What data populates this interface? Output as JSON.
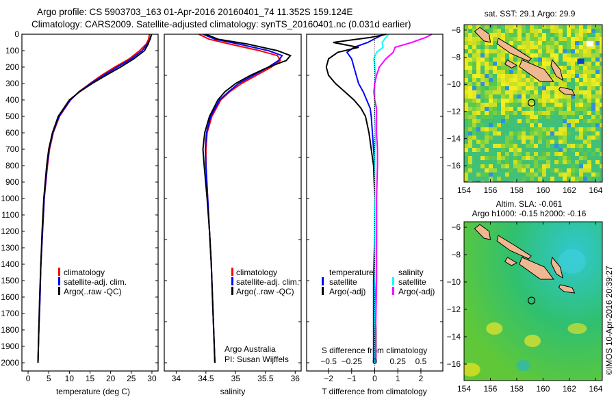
{
  "title_line1": "Argo profile: CS 5903703_163 01-Apr-2016 20160401_74 11.352S 159.124E",
  "title_line2": "Climatology: CARS2009. Satellite-adjusted climatology: synTS_20160401.nc (0.031d earlier)",
  "credit": "©IMOS 10-Apr-2016 20:39:27",
  "colors": {
    "climatology": "#ff0000",
    "satellite": "#0000ff",
    "argo": "#000000",
    "sal_satellite": "#00ffff",
    "sal_argo": "#ff00ff"
  },
  "chart_data": [
    {
      "type": "line",
      "id": "temperature",
      "xlabel": "temperature (deg C)",
      "ylabel": "depth",
      "xlim": [
        -1.5,
        31.5
      ],
      "ylim": [
        0,
        2080
      ],
      "xticks": [
        0,
        5,
        10,
        15,
        20,
        25,
        30
      ],
      "yticks": [
        0,
        100,
        200,
        300,
        400,
        500,
        600,
        700,
        800,
        900,
        1000,
        1100,
        1200,
        1300,
        1400,
        1500,
        1600,
        1700,
        1800,
        1900,
        2000
      ],
      "depth": [
        0,
        30,
        60,
        100,
        150,
        200,
        250,
        300,
        350,
        400,
        500,
        600,
        700,
        800,
        1000,
        1200,
        1400,
        1600,
        1800,
        2000
      ],
      "legend": [
        "climatology",
        "satellite-adj. clim.",
        "Argo(..raw -QC)"
      ],
      "series": [
        {
          "name": "climatology",
          "values": [
            29.4,
            29.2,
            28.6,
            27.0,
            24.5,
            21.0,
            17.8,
            15.0,
            12.3,
            10.3,
            7.6,
            6.1,
            5.2,
            4.7,
            3.9,
            3.5,
            3.1,
            2.9,
            2.6,
            2.4
          ]
        },
        {
          "name": "satellite-adj. clim.",
          "values": [
            29.9,
            29.6,
            28.9,
            27.6,
            25.0,
            21.6,
            18.3,
            15.2,
            12.4,
            10.2,
            7.5,
            6.0,
            5.1,
            4.6,
            3.9,
            3.5,
            3.1,
            2.9,
            2.6,
            2.4
          ]
        },
        {
          "name": "Argo(..raw -QC)",
          "values": [
            29.9,
            29.5,
            29.1,
            28.2,
            25.6,
            22.4,
            18.9,
            15.5,
            12.5,
            10.0,
            7.3,
            5.9,
            5.0,
            4.5,
            3.8,
            3.4,
            3.1,
            2.8,
            2.6,
            2.4
          ]
        }
      ]
    },
    {
      "type": "line",
      "id": "salinity",
      "xlabel": "salinity",
      "xlim": [
        33.8,
        36.1
      ],
      "ylim": [
        0,
        2080
      ],
      "xticks": [
        34,
        34.5,
        35,
        35.5,
        36
      ],
      "depth": [
        0,
        30,
        60,
        100,
        130,
        160,
        200,
        250,
        300,
        350,
        400,
        500,
        600,
        700,
        800,
        1000,
        1200,
        1400,
        1600,
        1800,
        2000
      ],
      "legend": [
        "climatology",
        "satellite-adj. clim.",
        "Argo(..raw -QC)"
      ],
      "annotation": [
        "Argo Australia",
        "PI: Susan Wijffels"
      ],
      "series": [
        {
          "name": "climatology",
          "values": [
            34.38,
            34.55,
            34.9,
            35.4,
            35.7,
            35.75,
            35.6,
            35.35,
            35.1,
            34.9,
            34.75,
            34.6,
            34.52,
            34.5,
            34.5,
            34.53,
            34.56,
            34.59,
            34.61,
            34.63,
            34.65
          ]
        },
        {
          "name": "satellite-adj. clim.",
          "values": [
            34.45,
            34.65,
            35.05,
            35.55,
            35.78,
            35.72,
            35.55,
            35.3,
            35.05,
            34.88,
            34.73,
            34.58,
            34.51,
            34.49,
            34.5,
            34.53,
            34.56,
            34.59,
            34.61,
            34.63,
            34.65
          ]
        },
        {
          "name": "Argo(..raw -QC)",
          "values": [
            34.5,
            34.7,
            35.2,
            35.7,
            35.92,
            35.85,
            35.55,
            35.25,
            35.0,
            34.82,
            34.7,
            34.56,
            34.48,
            34.45,
            34.47,
            34.52,
            34.56,
            34.59,
            34.61,
            34.63,
            34.65
          ]
        }
      ]
    },
    {
      "type": "line",
      "id": "difference",
      "xlabel": "T difference from climatology",
      "x2label": "S difference from climatology",
      "xlim": [
        -2.95,
        2.95
      ],
      "x2lim": [
        -0.7375,
        0.7375
      ],
      "ylim": [
        0,
        2080
      ],
      "xticks": [
        -2,
        -1,
        0,
        1,
        2
      ],
      "x2ticks": [
        "-0.5",
        "-0.25",
        "0",
        "0.25",
        "0.5"
      ],
      "legend_headers": [
        "temperature",
        "salinity"
      ],
      "legend": [
        "satellite",
        "Argo(-adj)",
        "satellite",
        "Argo(-adj)"
      ],
      "depth": [
        0,
        20,
        50,
        80,
        110,
        150,
        200,
        250,
        300,
        350,
        400,
        450,
        500,
        600,
        700,
        800,
        1000,
        1200,
        1500,
        1800,
        2000
      ],
      "series": [
        {
          "name": "T satellite",
          "axis": "T",
          "values": [
            0.4,
            0.1,
            -0.3,
            -0.9,
            -1.2,
            -1.0,
            -0.9,
            -0.8,
            -0.7,
            -0.5,
            -0.35,
            -0.2,
            -0.15,
            -0.1,
            -0.05,
            0,
            0,
            0,
            -0.05,
            -0.05,
            -0.05
          ]
        },
        {
          "name": "T Argo(-adj)",
          "axis": "T",
          "values": [
            0.5,
            -0.2,
            -1.8,
            -0.7,
            -1.6,
            -2.0,
            -2.1,
            -2.0,
            -1.7,
            -1.3,
            -0.9,
            -0.6,
            -0.4,
            -0.25,
            -0.15,
            -0.05,
            0,
            0,
            0,
            0.05,
            0.05
          ]
        },
        {
          "name": "S satellite",
          "axis": "S",
          "values": [
            0.15,
            0.12,
            0.08,
            0.09,
            0.02,
            -0.01,
            0.0,
            0.01,
            0.0,
            0.0,
            0.0,
            0.0,
            0.0,
            0.01,
            0.0,
            0.0,
            0.0,
            0.0,
            0.0,
            0.0,
            0.0
          ]
        },
        {
          "name": "S Argo(-adj)",
          "axis": "S",
          "values": [
            0.62,
            0.55,
            0.4,
            0.22,
            0.2,
            0.12,
            0.05,
            0.02,
            0.0,
            -0.01,
            0.0,
            0.02,
            0.02,
            0.02,
            0.03,
            0.03,
            0.02,
            0.02,
            0.02,
            0.01,
            0.01
          ]
        }
      ]
    },
    {
      "type": "heatmap",
      "id": "sst-map",
      "title": "sat. SST: 29.1  Argo: 29.9",
      "xlim": [
        154,
        164.5
      ],
      "ylim": [
        -17.2,
        -5.6
      ],
      "xticks": [
        154,
        156,
        158,
        160,
        162,
        164
      ],
      "yticks": [
        -6,
        -8,
        -10,
        -12,
        -14,
        -16
      ],
      "marker": {
        "lon": 159.124,
        "lat": -11.352
      }
    },
    {
      "type": "heatmap",
      "id": "sla-map",
      "title": "Altim. SLA: -0.061",
      "subtitle": "Argo h1000: -0.15 h2000: -0.16",
      "xlim": [
        154,
        164.5
      ],
      "ylim": [
        -17.2,
        -5.6
      ],
      "xticks": [
        154,
        156,
        158,
        160,
        162,
        164
      ],
      "yticks": [
        -6,
        -8,
        -10,
        -12,
        -14,
        -16
      ],
      "marker": {
        "lon": 159.124,
        "lat": -11.352
      }
    }
  ]
}
